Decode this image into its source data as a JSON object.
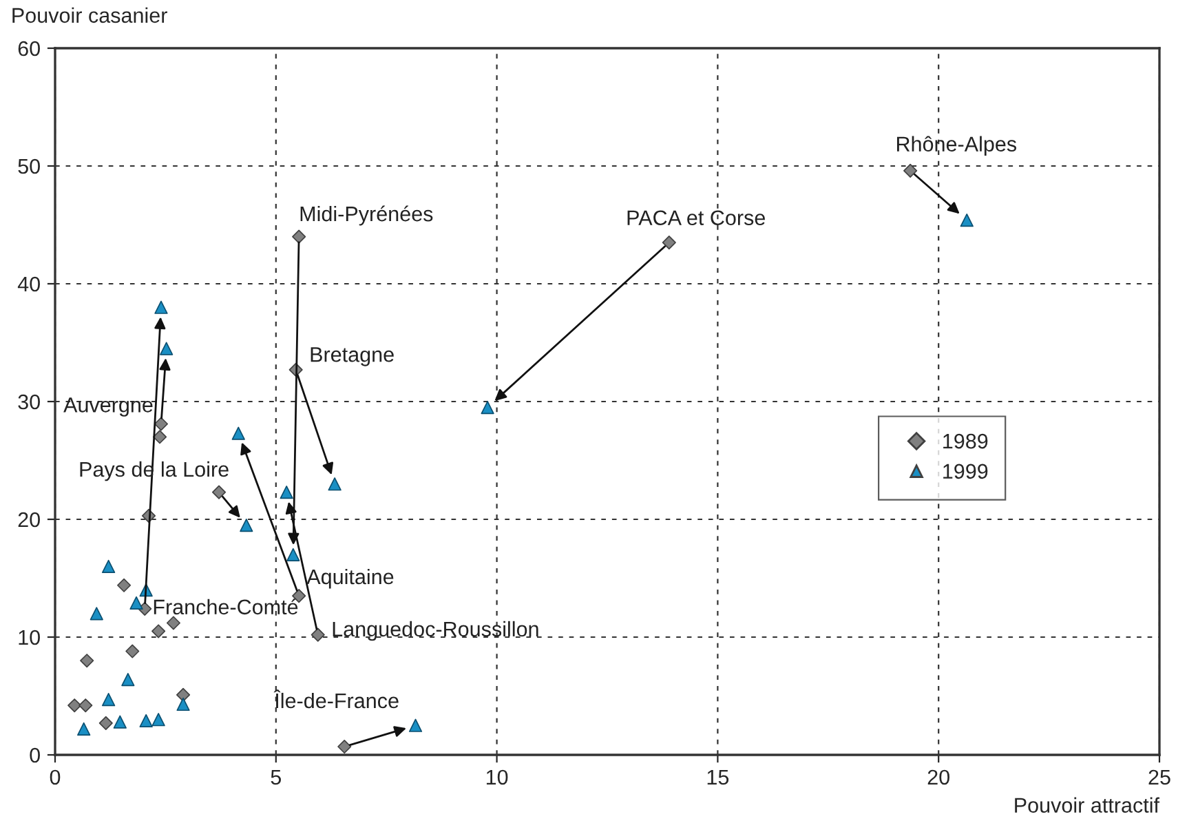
{
  "chart_data": {
    "type": "scatter",
    "xlabel": "Pouvoir attractif",
    "ylabel": "Pouvoir casanier",
    "xlim": [
      0,
      25
    ],
    "ylim": [
      0,
      60
    ],
    "xticks": [
      0,
      5,
      10,
      15,
      20,
      25
    ],
    "yticks": [
      0,
      10,
      20,
      30,
      40,
      50,
      60
    ],
    "grid": true,
    "legend": "right",
    "series": [
      {
        "name": "1989",
        "color": "#808080",
        "marker": "diamond",
        "x": [
          19.36,
          13.9,
          5.52,
          5.45,
          3.71,
          5.52,
          5.95,
          6.55,
          2.4,
          2.03,
          2.37,
          2.12,
          1.56,
          2.34,
          2.68,
          1.75,
          0.72,
          0.44,
          0.69,
          1.15,
          2.9
        ],
        "values": [
          49.6,
          43.5,
          44.0,
          32.7,
          22.3,
          13.5,
          10.2,
          0.7,
          28.1,
          12.4,
          27.0,
          20.3,
          14.4,
          10.5,
          11.2,
          8.8,
          8.0,
          4.2,
          4.2,
          2.7,
          5.1
        ]
      },
      {
        "name": "1999",
        "color": "#1a8fc4",
        "marker": "triangle",
        "x": [
          20.64,
          9.79,
          5.39,
          6.33,
          4.33,
          4.15,
          5.24,
          8.16,
          2.52,
          2.4,
          2.06,
          1.21,
          1.84,
          0.94,
          1.65,
          1.21,
          2.9,
          0.65,
          1.47,
          2.06,
          2.34
        ],
        "values": [
          45.4,
          29.5,
          17.0,
          23.0,
          19.5,
          27.3,
          22.3,
          2.5,
          34.5,
          38.0,
          14.0,
          16.0,
          12.9,
          12.0,
          6.4,
          4.7,
          4.3,
          2.2,
          2.8,
          2.9,
          3.0
        ]
      }
    ],
    "annotations": [
      {
        "text": "Rhône-Alpes",
        "x": 19.36,
        "y": 49.6
      },
      {
        "text": "PACA et Corse",
        "x": 13.9,
        "y": 43.5
      },
      {
        "text": "Midi-Pyrénées",
        "x": 5.52,
        "y": 44.0
      },
      {
        "text": "Bretagne",
        "x": 5.45,
        "y": 32.7
      },
      {
        "text": "Pays de la Loire",
        "x": 3.71,
        "y": 22.3
      },
      {
        "text": "Aquitaine",
        "x": 5.52,
        "y": 13.5
      },
      {
        "text": "Languedoc-Roussillon",
        "x": 5.95,
        "y": 10.2
      },
      {
        "text": "Île-de-France",
        "x": 6.55,
        "y": 0.7
      },
      {
        "text": "Auvergne",
        "x": 2.4,
        "y": 28.1
      },
      {
        "text": "Franche-Comté",
        "x": 2.03,
        "y": 12.4
      }
    ]
  }
}
